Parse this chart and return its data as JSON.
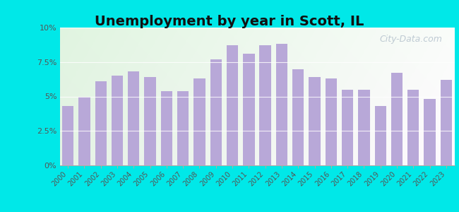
{
  "title": "Unemployment by year in Scott, IL",
  "years": [
    "2000",
    "2001",
    "2002",
    "2003",
    "2004",
    "2005",
    "2006",
    "2007",
    "2008",
    "2009",
    "2010",
    "2011",
    "2012",
    "2013",
    "2014",
    "2015",
    "2016",
    "2017",
    "2018",
    "2019",
    "2020",
    "2021",
    "2022",
    "2023"
  ],
  "values": [
    4.3,
    5.0,
    6.1,
    6.5,
    6.8,
    6.4,
    5.4,
    5.4,
    6.3,
    7.7,
    8.7,
    8.1,
    8.7,
    8.8,
    7.0,
    6.4,
    6.3,
    5.5,
    5.5,
    4.3,
    6.7,
    5.5,
    4.8,
    6.2
  ],
  "bar_color": "#b8a8d8",
  "background_outer": "#00e8e8",
  "ylim": [
    0,
    10
  ],
  "yticks": [
    0,
    2.5,
    5.0,
    7.5,
    10.0
  ],
  "ytick_labels": [
    "0%",
    "2.5%",
    "5%",
    "7.5%",
    "10%"
  ],
  "title_fontsize": 14,
  "watermark": "City-Data.com"
}
